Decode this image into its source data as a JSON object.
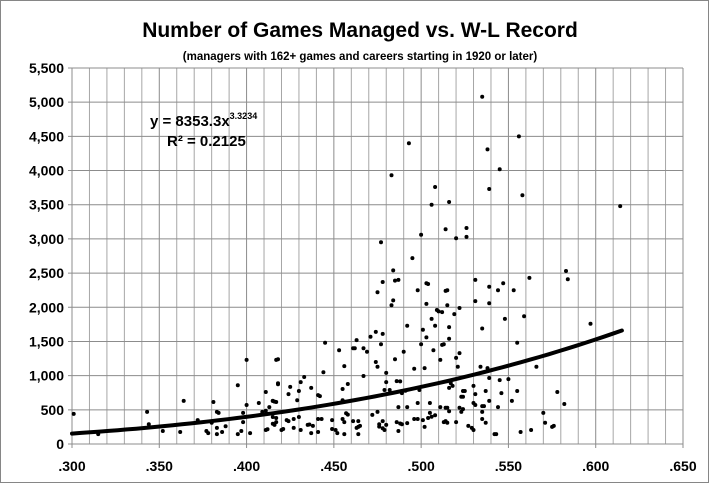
{
  "chart_data": {
    "type": "scatter",
    "title": "Number of Games Managed vs. W-L Record",
    "subtitle": "(managers with 162+ games and careers starting in 1920 or later)",
    "xlabel": "",
    "ylabel": "",
    "xlim": [
      0.3,
      0.65
    ],
    "ylim": [
      0,
      5500
    ],
    "x_ticks": [
      ".300",
      ".350",
      ".400",
      ".450",
      ".500",
      ".550",
      ".600",
      ".650"
    ],
    "y_ticks": [
      "0",
      "500",
      "1,000",
      "1,500",
      "2,000",
      "2,500",
      "3,000",
      "3,500",
      "4,000",
      "4,500",
      "5,000",
      "5,500"
    ],
    "grid": true,
    "legend": "none",
    "marker_color": "#000000",
    "grid_color": "#a6a6a6",
    "trendline": {
      "type": "power",
      "coefficient": 8353.3,
      "exponent": 3.3234,
      "equation_label": "y = 8353.3x",
      "exponent_label": "3.3234",
      "r2_label": "R² = 0.2125",
      "x_range": [
        0.3,
        0.615
      ]
    },
    "points": [
      [
        0.535,
        5080
      ],
      [
        0.556,
        4500
      ],
      [
        0.493,
        4400
      ],
      [
        0.538,
        4310
      ],
      [
        0.545,
        4020
      ],
      [
        0.483,
        3930
      ],
      [
        0.508,
        3760
      ],
      [
        0.539,
        3730
      ],
      [
        0.558,
        3640
      ],
      [
        0.516,
        3540
      ],
      [
        0.506,
        3500
      ],
      [
        0.614,
        3480
      ],
      [
        0.526,
        3160
      ],
      [
        0.514,
        3140
      ],
      [
        0.52,
        3010
      ],
      [
        0.526,
        3030
      ],
      [
        0.5,
        3060
      ],
      [
        0.477,
        2950
      ],
      [
        0.495,
        2720
      ],
      [
        0.484,
        2540
      ],
      [
        0.583,
        2530
      ],
      [
        0.478,
        2370
      ],
      [
        0.584,
        2410
      ],
      [
        0.485,
        2390
      ],
      [
        0.487,
        2400
      ],
      [
        0.562,
        2430
      ],
      [
        0.531,
        2400
      ],
      [
        0.503,
        2350
      ],
      [
        0.504,
        2340
      ],
      [
        0.547,
        2350
      ],
      [
        0.539,
        2300
      ],
      [
        0.544,
        2250
      ],
      [
        0.553,
        2250
      ],
      [
        0.475,
        2220
      ],
      [
        0.498,
        2250
      ],
      [
        0.514,
        2240
      ],
      [
        0.515,
        2250
      ],
      [
        0.484,
        2100
      ],
      [
        0.483,
        2030
      ],
      [
        0.503,
        2050
      ],
      [
        0.515,
        2030
      ],
      [
        0.531,
        2090
      ],
      [
        0.539,
        2060
      ],
      [
        0.522,
        1990
      ],
      [
        0.509,
        1960
      ],
      [
        0.51,
        1940
      ],
      [
        0.512,
        1930
      ],
      [
        0.519,
        1900
      ],
      [
        0.506,
        1830
      ],
      [
        0.548,
        1830
      ],
      [
        0.559,
        1870
      ],
      [
        0.492,
        1730
      ],
      [
        0.501,
        1670
      ],
      [
        0.508,
        1730
      ],
      [
        0.516,
        1710
      ],
      [
        0.474,
        1640
      ],
      [
        0.471,
        1570
      ],
      [
        0.478,
        1610
      ],
      [
        0.463,
        1520
      ],
      [
        0.445,
        1480
      ],
      [
        0.5,
        1460
      ],
      [
        0.503,
        1560
      ],
      [
        0.516,
        1540
      ],
      [
        0.512,
        1450
      ],
      [
        0.513,
        1460
      ],
      [
        0.477,
        1460
      ],
      [
        0.467,
        1400
      ],
      [
        0.461,
        1400
      ],
      [
        0.462,
        1400
      ],
      [
        0.469,
        1350
      ],
      [
        0.453,
        1370
      ],
      [
        0.507,
        1370
      ],
      [
        0.49,
        1350
      ],
      [
        0.522,
        1330
      ],
      [
        0.417,
        1230
      ],
      [
        0.485,
        1240
      ],
      [
        0.474,
        1200
      ],
      [
        0.511,
        1230
      ],
      [
        0.52,
        1260
      ],
      [
        0.456,
        1140
      ],
      [
        0.475,
        1130
      ],
      [
        0.496,
        1100
      ],
      [
        0.502,
        1110
      ],
      [
        0.521,
        1130
      ],
      [
        0.444,
        1050
      ],
      [
        0.48,
        1040
      ],
      [
        0.467,
        995
      ],
      [
        0.433,
        980
      ],
      [
        0.431,
        905
      ],
      [
        0.418,
        890
      ],
      [
        0.486,
        920
      ],
      [
        0.488,
        915
      ],
      [
        0.48,
        905
      ],
      [
        0.425,
        835
      ],
      [
        0.437,
        820
      ],
      [
        0.458,
        877
      ],
      [
        0.455,
        805
      ],
      [
        0.43,
        775
      ],
      [
        0.479,
        790
      ],
      [
        0.482,
        790
      ],
      [
        0.489,
        775
      ],
      [
        0.491,
        780
      ],
      [
        0.499,
        790
      ],
      [
        0.518,
        850
      ],
      [
        0.516,
        820
      ],
      [
        0.525,
        775
      ],
      [
        0.523,
        690
      ],
      [
        0.517,
        890
      ],
      [
        0.424,
        730
      ],
      [
        0.441,
        715
      ],
      [
        0.442,
        700
      ],
      [
        0.415,
        630
      ],
      [
        0.416,
        620
      ],
      [
        0.429,
        640
      ],
      [
        0.455,
        640
      ],
      [
        0.489,
        745
      ],
      [
        0.498,
        600
      ],
      [
        0.505,
        600
      ],
      [
        0.487,
        540
      ],
      [
        0.492,
        540
      ],
      [
        0.511,
        540
      ],
      [
        0.514,
        530
      ],
      [
        0.515,
        530
      ],
      [
        0.522,
        530
      ],
      [
        0.524,
        510
      ],
      [
        0.516,
        480
      ],
      [
        0.457,
        450
      ],
      [
        0.458,
        430
      ],
      [
        0.475,
        470
      ],
      [
        0.505,
        455
      ],
      [
        0.508,
        420
      ],
      [
        0.506,
        400
      ],
      [
        0.415,
        395
      ],
      [
        0.417,
        380
      ],
      [
        0.427,
        365
      ],
      [
        0.43,
        395
      ],
      [
        0.441,
        365
      ],
      [
        0.443,
        365
      ],
      [
        0.449,
        350
      ],
      [
        0.455,
        365
      ],
      [
        0.456,
        320
      ],
      [
        0.461,
        335
      ],
      [
        0.464,
        335
      ],
      [
        0.472,
        425
      ],
      [
        0.478,
        335
      ],
      [
        0.486,
        320
      ],
      [
        0.488,
        300
      ],
      [
        0.492,
        305
      ],
      [
        0.496,
        365
      ],
      [
        0.498,
        365
      ],
      [
        0.501,
        350
      ],
      [
        0.504,
        380
      ],
      [
        0.514,
        335
      ],
      [
        0.515,
        310
      ],
      [
        0.52,
        320
      ],
      [
        0.423,
        350
      ],
      [
        0.424,
        335
      ],
      [
        0.421,
        220
      ],
      [
        0.42,
        205
      ],
      [
        0.427,
        235
      ],
      [
        0.431,
        205
      ],
      [
        0.435,
        280
      ],
      [
        0.436,
        285
      ],
      [
        0.438,
        265
      ],
      [
        0.437,
        160
      ],
      [
        0.441,
        175
      ],
      [
        0.449,
        220
      ],
      [
        0.451,
        205
      ],
      [
        0.452,
        160
      ],
      [
        0.456,
        145
      ],
      [
        0.463,
        235
      ],
      [
        0.464,
        250
      ],
      [
        0.465,
        265
      ],
      [
        0.464,
        145
      ],
      [
        0.476,
        290
      ],
      [
        0.476,
        255
      ],
      [
        0.478,
        230
      ],
      [
        0.479,
        205
      ],
      [
        0.48,
        280
      ],
      [
        0.487,
        190
      ],
      [
        0.489,
        290
      ],
      [
        0.502,
        250
      ],
      [
        0.513,
        320
      ],
      [
        0.527,
        265
      ],
      [
        0.301,
        440
      ],
      [
        0.4,
        1230
      ],
      [
        0.418,
        1240
      ],
      [
        0.395,
        860
      ],
      [
        0.418,
        875
      ],
      [
        0.411,
        760
      ],
      [
        0.364,
        630
      ],
      [
        0.381,
        615
      ],
      [
        0.415,
        630
      ],
      [
        0.417,
        615
      ],
      [
        0.407,
        600
      ],
      [
        0.4,
        570
      ],
      [
        0.413,
        540
      ],
      [
        0.343,
        470
      ],
      [
        0.383,
        470
      ],
      [
        0.384,
        455
      ],
      [
        0.398,
        455
      ],
      [
        0.409,
        470
      ],
      [
        0.411,
        485
      ],
      [
        0.344,
        290
      ],
      [
        0.372,
        350
      ],
      [
        0.38,
        310
      ],
      [
        0.398,
        320
      ],
      [
        0.417,
        320
      ],
      [
        0.415,
        295
      ],
      [
        0.352,
        190
      ],
      [
        0.362,
        175
      ],
      [
        0.377,
        190
      ],
      [
        0.378,
        160
      ],
      [
        0.383,
        235
      ],
      [
        0.383,
        145
      ],
      [
        0.386,
        175
      ],
      [
        0.388,
        260
      ],
      [
        0.395,
        145
      ],
      [
        0.397,
        190
      ],
      [
        0.402,
        160
      ],
      [
        0.411,
        205
      ],
      [
        0.412,
        215
      ],
      [
        0.416,
        280
      ],
      [
        0.315,
        145
      ],
      [
        0.535,
        1690
      ],
      [
        0.597,
        1760
      ],
      [
        0.555,
        1480
      ],
      [
        0.566,
        1130
      ],
      [
        0.534,
        1130
      ],
      [
        0.538,
        1110
      ],
      [
        0.539,
        965
      ],
      [
        0.545,
        935
      ],
      [
        0.55,
        950
      ],
      [
        0.524,
        775
      ],
      [
        0.53,
        850
      ],
      [
        0.524,
        690
      ],
      [
        0.531,
        730
      ],
      [
        0.537,
        775
      ],
      [
        0.546,
        745
      ],
      [
        0.555,
        775
      ],
      [
        0.578,
        760
      ],
      [
        0.53,
        600
      ],
      [
        0.531,
        570
      ],
      [
        0.535,
        555
      ],
      [
        0.536,
        555
      ],
      [
        0.539,
        630
      ],
      [
        0.544,
        540
      ],
      [
        0.552,
        630
      ],
      [
        0.582,
        585
      ],
      [
        0.523,
        470
      ],
      [
        0.535,
        470
      ],
      [
        0.535,
        365
      ],
      [
        0.537,
        310
      ],
      [
        0.57,
        455
      ],
      [
        0.571,
        310
      ],
      [
        0.529,
        235
      ],
      [
        0.53,
        205
      ],
      [
        0.542,
        145
      ],
      [
        0.543,
        145
      ],
      [
        0.557,
        175
      ],
      [
        0.563,
        205
      ],
      [
        0.575,
        250
      ],
      [
        0.576,
        265
      ]
    ]
  }
}
